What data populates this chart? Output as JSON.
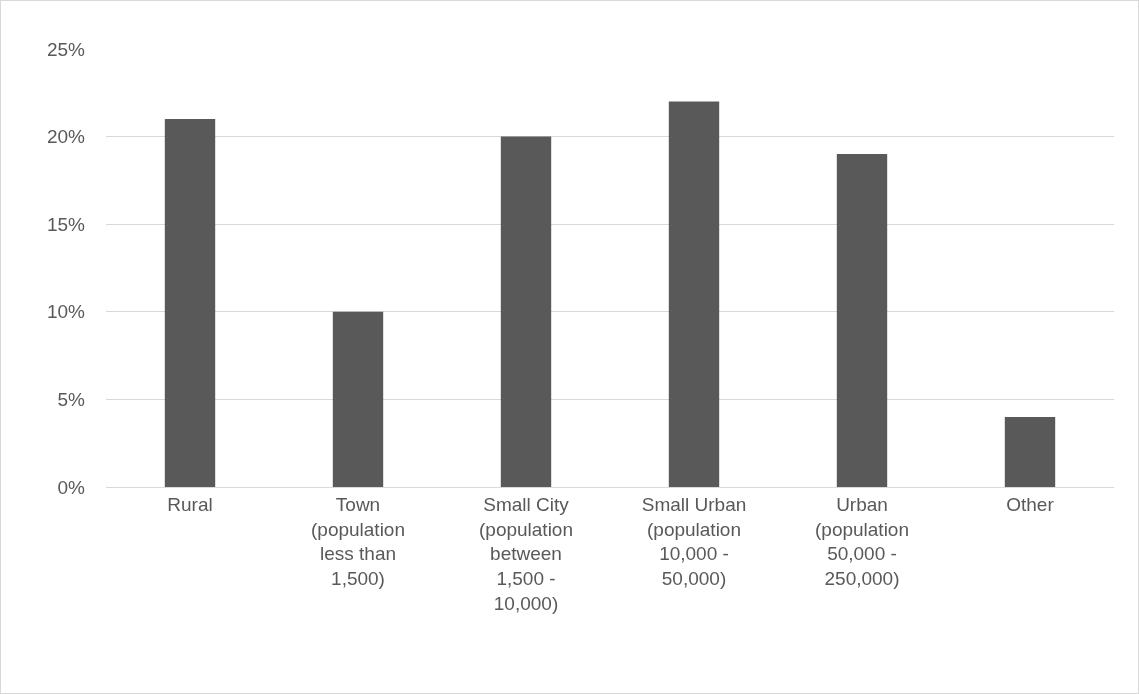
{
  "chart_data": {
    "type": "bar",
    "categories": [
      "Rural",
      "Town (population less than 1,500)",
      "Small City (population between 1,500 - 10,000)",
      "Small Urban (population 10,000 - 50,000)",
      "Urban (population 50,000 - 250,000)",
      "Other"
    ],
    "values": [
      21,
      10,
      20,
      22,
      19,
      4
    ],
    "color": "#595959",
    "ylim": [
      0,
      25
    ],
    "yticks": [
      {
        "value": 0,
        "label": "0%"
      },
      {
        "value": 5,
        "label": "5%"
      },
      {
        "value": 10,
        "label": "10%"
      },
      {
        "value": 15,
        "label": "15%"
      },
      {
        "value": 20,
        "label": "20%"
      },
      {
        "value": 25,
        "label": "25%"
      }
    ],
    "grid": "y"
  }
}
